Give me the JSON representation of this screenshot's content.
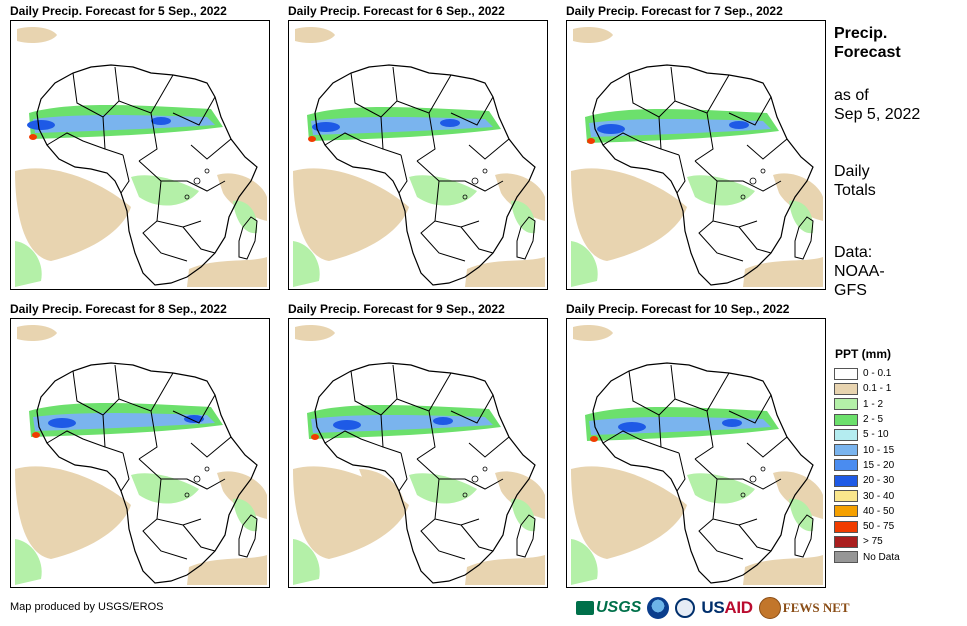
{
  "panels": [
    {
      "title": "Daily Precip. Forecast for 5 Sep., 2022"
    },
    {
      "title": "Daily Precip. Forecast for 6 Sep., 2022"
    },
    {
      "title": "Daily Precip. Forecast for 7 Sep., 2022"
    },
    {
      "title": "Daily Precip. Forecast for 8 Sep., 2022"
    },
    {
      "title": "Daily Precip. Forecast for 9 Sep., 2022"
    },
    {
      "title": "Daily Precip. Forecast for 10 Sep., 2022"
    }
  ],
  "side": {
    "heading_line1": "Precip.",
    "heading_line2": "Forecast",
    "asof_line1": "as of",
    "asof_line2": "Sep 5, 2022",
    "totals_line1": "Daily",
    "totals_line2": "Totals",
    "data_line1": "Data:",
    "data_line2": "NOAA-",
    "data_line3": "GFS"
  },
  "legend": {
    "title": "PPT (mm)",
    "items": [
      {
        "label": "0 - 0.1",
        "color": "#ffffff"
      },
      {
        "label": "0.1 - 1",
        "color": "#e8d4b0"
      },
      {
        "label": "1 - 2",
        "color": "#b4f0a8"
      },
      {
        "label": "2 - 5",
        "color": "#6ce06c"
      },
      {
        "label": "5 - 10",
        "color": "#b4ecf0"
      },
      {
        "label": "10 - 15",
        "color": "#7ab4ee"
      },
      {
        "label": "15 - 20",
        "color": "#4a8cf0"
      },
      {
        "label": "20 - 30",
        "color": "#1e5ae6"
      },
      {
        "label": "30 - 40",
        "color": "#fae68c"
      },
      {
        "label": "40 - 50",
        "color": "#f5a000"
      },
      {
        "label": "50 - 75",
        "color": "#f03c00"
      },
      {
        "label": "> 75",
        "color": "#aa1e1e"
      },
      {
        "label": "No Data",
        "color": "#969696"
      }
    ]
  },
  "credit": "Map produced by USGS/EROS",
  "logos": {
    "usgs": "USGS",
    "usaid_blue": "US",
    "usaid_red": "AID",
    "fews": "FEWS NET"
  },
  "colors": {
    "dry": "#e8d4b0",
    "light": "#b4f0a8",
    "moderate": "#6ce06c",
    "wet": "#7ab4ee",
    "heavy": "#1e5ae6",
    "extreme": "#f03c00"
  }
}
